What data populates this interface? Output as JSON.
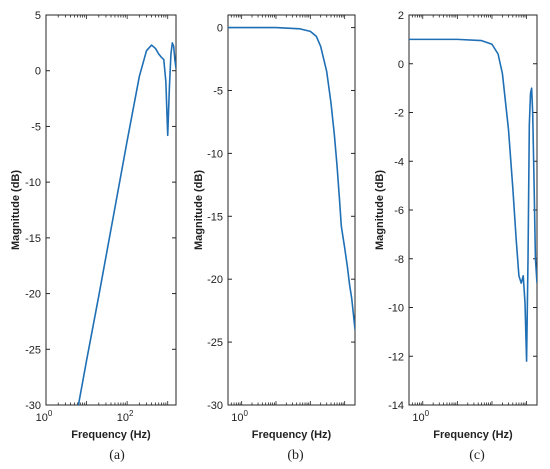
{
  "colors": {
    "line": "#1f6fb5",
    "axis": "#262626",
    "text": "#222222",
    "background": "#ffffff"
  },
  "chart_data": [
    {
      "type": "line",
      "caption": "(a)",
      "xlabel": "Frequency (Hz)",
      "ylabel": "Magnitude (dB)",
      "xscale": "log",
      "xlim": [
        1,
        1600
      ],
      "ylim": [
        -30,
        5
      ],
      "grid": false,
      "x_ticks": [
        {
          "value": 1,
          "base": "10",
          "exp": "0"
        },
        {
          "value": 100,
          "base": "10",
          "exp": "2"
        }
      ],
      "y_ticks": [
        {
          "value": 5,
          "label": "5"
        },
        {
          "value": 0,
          "label": "0"
        },
        {
          "value": -5,
          "label": "-5"
        },
        {
          "value": -10,
          "label": "-10"
        },
        {
          "value": -15,
          "label": "-15"
        },
        {
          "value": -20,
          "label": "-20"
        },
        {
          "value": -25,
          "label": "-25"
        },
        {
          "value": -30,
          "label": "-30"
        }
      ],
      "series": [
        {
          "x": [
            6.3,
            10,
            20,
            50,
            100,
            200,
            300,
            400,
            500,
            600,
            700,
            800,
            900,
            1000,
            1100,
            1200,
            1300,
            1400,
            1500,
            1600
          ],
          "y": [
            -30,
            -26,
            -20.2,
            -12.3,
            -6.3,
            -0.5,
            1.8,
            2.3,
            2.0,
            1.5,
            1.2,
            1.0,
            -1.0,
            -5.8,
            -1.5,
            1.5,
            2.5,
            2.2,
            1.0,
            0.2
          ]
        }
      ]
    },
    {
      "type": "line",
      "caption": "(b)",
      "xlabel": "Frequency (Hz)",
      "ylabel": "Magnitude (dB)",
      "xscale": "log",
      "xlim": [
        0.4,
        2000
      ],
      "ylim": [
        -30,
        1
      ],
      "grid": false,
      "x_ticks": [
        {
          "value": 1,
          "base": "10",
          "exp": "0"
        }
      ],
      "y_ticks": [
        {
          "value": 0,
          "label": "0"
        },
        {
          "value": -5,
          "label": "-5"
        },
        {
          "value": -10,
          "label": "-10"
        },
        {
          "value": -15,
          "label": "-15"
        },
        {
          "value": -20,
          "label": "-20"
        },
        {
          "value": -25,
          "label": "-25"
        },
        {
          "value": -30,
          "label": "-30"
        }
      ],
      "series": [
        {
          "x": [
            0.4,
            1,
            10,
            50,
            100,
            150,
            200,
            300,
            400,
            500,
            600,
            700,
            800,
            1000,
            1200,
            1400,
            1600,
            1800,
            2000
          ],
          "y": [
            0,
            0,
            0,
            -0.1,
            -0.3,
            -0.7,
            -1.5,
            -3.5,
            -6,
            -8.5,
            -11,
            -13.5,
            -15.8,
            -17.5,
            -19,
            -20.5,
            -21.5,
            -22.8,
            -24
          ]
        }
      ]
    },
    {
      "type": "line",
      "caption": "(c)",
      "xlabel": "Frequency (Hz)",
      "ylabel": "Magnitude (dB)",
      "xscale": "log",
      "xlim": [
        0.4,
        2000
      ],
      "ylim": [
        -14,
        2
      ],
      "grid": false,
      "x_ticks": [
        {
          "value": 1,
          "base": "10",
          "exp": "0"
        }
      ],
      "y_ticks": [
        {
          "value": 2,
          "label": "2"
        },
        {
          "value": 0,
          "label": "0"
        },
        {
          "value": -2,
          "label": "-2"
        },
        {
          "value": -4,
          "label": "-4"
        },
        {
          "value": -6,
          "label": "-6"
        },
        {
          "value": -8,
          "label": "-8"
        },
        {
          "value": -10,
          "label": "-10"
        },
        {
          "value": -12,
          "label": "-12"
        },
        {
          "value": -14,
          "label": "-14"
        }
      ],
      "series": [
        {
          "x": [
            0.4,
            1,
            10,
            50,
            100,
            150,
            200,
            300,
            400,
            500,
            600,
            700,
            800,
            900,
            1000,
            1100,
            1200,
            1300,
            1400,
            1500,
            1600,
            1700,
            1800,
            2000
          ],
          "y": [
            1,
            1,
            1,
            0.95,
            0.8,
            0.4,
            -0.4,
            -2.7,
            -5.1,
            -7.2,
            -8.7,
            -9.0,
            -8.7,
            -9.8,
            -12.2,
            -8.0,
            -2.5,
            -1.2,
            -1.0,
            -2.0,
            -4.0,
            -6.0,
            -8.0,
            -9.0
          ]
        }
      ]
    }
  ]
}
